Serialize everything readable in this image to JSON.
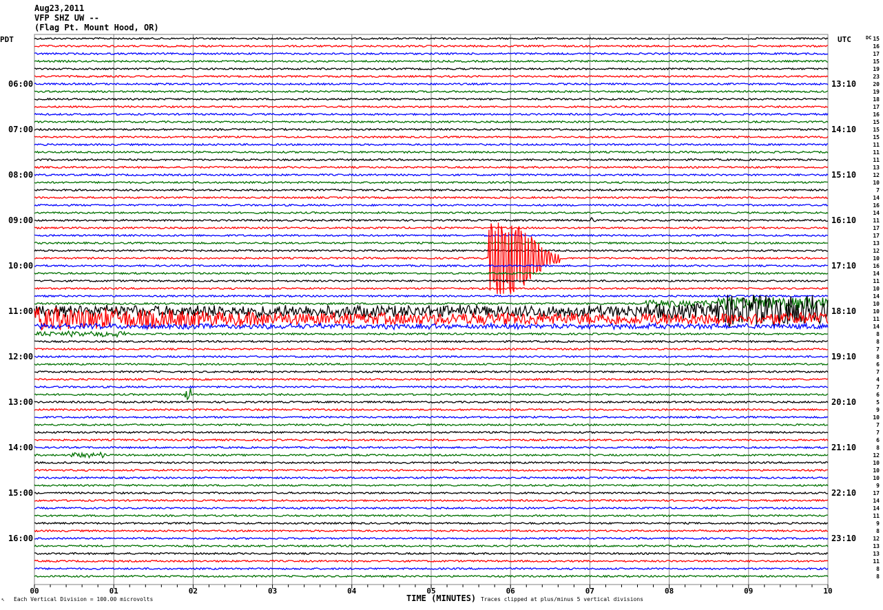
{
  "header": {
    "date": "Aug23,2011",
    "station": "VFP SHZ UW --",
    "location": "(Flag Pt. Mount Hood, OR)"
  },
  "left_timezone": "PDT",
  "right_timezone": "UTC",
  "dc_label": "DC",
  "footer": {
    "scale_note": "Each Vertical Division =  100.00 microvolts",
    "xlabel": "TIME (MINUTES)",
    "clip_note": "Traces clipped at plus/minus 5 vertical divisions",
    "corner_mark": "↖"
  },
  "chart_data": {
    "type": "line",
    "subtype": "helicorder",
    "xlabel": "TIME (MINUTES)",
    "xlim": [
      0,
      10
    ],
    "x_ticks": [
      "00",
      "01",
      "02",
      "03",
      "04",
      "05",
      "06",
      "07",
      "08",
      "09",
      "10"
    ],
    "minor_tick_step_minutes": 0.2,
    "grid": "vertical lines every minute",
    "row_minutes": 10,
    "rows_count": 72,
    "trace_colors": [
      "#000000",
      "#ff0000",
      "#0000ff",
      "#007000"
    ],
    "grid_color": "#808080",
    "left_labels": [
      {
        "row": 6,
        "text": "06:00"
      },
      {
        "row": 12,
        "text": "07:00"
      },
      {
        "row": 18,
        "text": "08:00"
      },
      {
        "row": 24,
        "text": "09:00"
      },
      {
        "row": 30,
        "text": "10:00"
      },
      {
        "row": 36,
        "text": "11:00"
      },
      {
        "row": 42,
        "text": "12:00"
      },
      {
        "row": 48,
        "text": "13:00"
      },
      {
        "row": 54,
        "text": "14:00"
      },
      {
        "row": 60,
        "text": "15:00"
      },
      {
        "row": 66,
        "text": "16:00"
      }
    ],
    "right_labels": [
      {
        "row": 6,
        "text": "13:10"
      },
      {
        "row": 12,
        "text": "14:10"
      },
      {
        "row": 18,
        "text": "15:10"
      },
      {
        "row": 24,
        "text": "16:10"
      },
      {
        "row": 30,
        "text": "17:10"
      },
      {
        "row": 36,
        "text": "18:10"
      },
      {
        "row": 42,
        "text": "19:10"
      },
      {
        "row": 48,
        "text": "20:10"
      },
      {
        "row": 54,
        "text": "21:10"
      },
      {
        "row": 60,
        "text": "22:10"
      },
      {
        "row": 66,
        "text": "23:10"
      }
    ],
    "dc_offsets": [
      15,
      16,
      17,
      15,
      19,
      23,
      20,
      19,
      18,
      17,
      16,
      15,
      15,
      15,
      11,
      11,
      11,
      13,
      12,
      10,
      7,
      14,
      16,
      14,
      11,
      17,
      17,
      13,
      12,
      10,
      16,
      14,
      11,
      10,
      14,
      10,
      10,
      11,
      14,
      8,
      8,
      7,
      8,
      6,
      7,
      4,
      7,
      6,
      5,
      9,
      10,
      7,
      7,
      6,
      8,
      12,
      10,
      10,
      10,
      9,
      17,
      14,
      14,
      11,
      9,
      8,
      12,
      13,
      13,
      11,
      8,
      8
    ],
    "background_noise_divisions": 0.12,
    "events": [
      {
        "row": 24,
        "start_min": 7.0,
        "end_min": 7.08,
        "amplitude_div": 0.6
      },
      {
        "row": 29,
        "start_min": 5.72,
        "end_min": 6.62,
        "amplitude_div": 5,
        "clipped": true
      },
      {
        "row": 35,
        "start_min": 7.7,
        "end_min": 10,
        "amplitude_div": 0.9
      },
      {
        "row": 36,
        "start_min": 0,
        "end_min": 10,
        "amplitude_div": 2.2
      },
      {
        "row": 37,
        "start_min": 0,
        "end_min": 10,
        "amplitude_div": 1.6
      },
      {
        "row": 38,
        "start_min": 0,
        "end_min": 10,
        "amplitude_div": 0.3
      },
      {
        "row": 39,
        "start_min": 0,
        "end_min": 1.2,
        "amplitude_div": 0.3
      },
      {
        "row": 47,
        "start_min": 1.9,
        "end_min": 1.97,
        "amplitude_div": 1.0
      },
      {
        "row": 55,
        "start_min": 0.45,
        "end_min": 0.9,
        "amplitude_div": 0.3
      }
    ]
  }
}
